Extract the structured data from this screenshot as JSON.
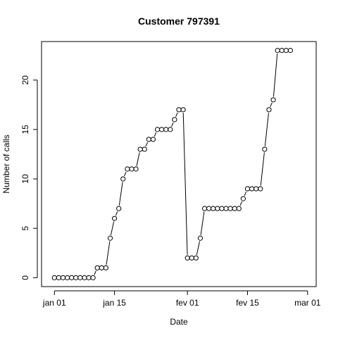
{
  "chart_data": {
    "type": "line",
    "title": "Customer 797391",
    "xlabel": "Date",
    "ylabel": "Number of calls",
    "x_ticks": [
      {
        "date": "2015-01-01",
        "label": "jan 01"
      },
      {
        "date": "2015-01-15",
        "label": "jan 15"
      },
      {
        "date": "2015-02-01",
        "label": "fev 01"
      },
      {
        "date": "2015-02-15",
        "label": "fev 15"
      },
      {
        "date": "2015-03-01",
        "label": "mar 01"
      }
    ],
    "y_ticks": [
      0,
      5,
      10,
      15,
      20
    ],
    "ylim": [
      -0.9,
      23.9
    ],
    "xlim": [
      "2014-12-29",
      "2015-03-03"
    ],
    "grid": false,
    "marker": "open-circle",
    "series": [
      {
        "x": [
          "2015-01-01",
          "2015-01-02",
          "2015-01-03",
          "2015-01-04",
          "2015-01-05",
          "2015-01-06",
          "2015-01-07",
          "2015-01-08",
          "2015-01-09",
          "2015-01-10",
          "2015-01-11",
          "2015-01-12",
          "2015-01-13",
          "2015-01-14",
          "2015-01-15",
          "2015-01-16",
          "2015-01-17",
          "2015-01-18",
          "2015-01-19",
          "2015-01-20",
          "2015-01-21",
          "2015-01-22",
          "2015-01-23",
          "2015-01-24",
          "2015-01-25",
          "2015-01-26",
          "2015-01-27",
          "2015-01-28",
          "2015-01-29",
          "2015-01-30",
          "2015-01-31",
          "2015-02-01",
          "2015-02-02",
          "2015-02-03",
          "2015-02-04",
          "2015-02-05",
          "2015-02-06",
          "2015-02-07",
          "2015-02-08",
          "2015-02-09",
          "2015-02-10",
          "2015-02-11",
          "2015-02-12",
          "2015-02-13",
          "2015-02-14",
          "2015-02-15",
          "2015-02-16",
          "2015-02-17",
          "2015-02-18",
          "2015-02-19",
          "2015-02-20",
          "2015-02-21",
          "2015-02-22",
          "2015-02-23",
          "2015-02-24",
          "2015-02-25"
        ],
        "values": [
          0,
          0,
          0,
          0,
          0,
          0,
          0,
          0,
          0,
          0,
          1,
          1,
          1,
          4,
          6,
          7,
          10,
          11,
          11,
          11,
          13,
          13,
          14,
          14,
          15,
          15,
          15,
          15,
          16,
          17,
          17,
          2,
          2,
          2,
          4,
          7,
          7,
          7,
          7,
          7,
          7,
          7,
          7,
          7,
          8,
          9,
          9,
          9,
          9,
          13,
          17,
          18,
          23,
          23,
          23,
          23
        ]
      }
    ]
  }
}
